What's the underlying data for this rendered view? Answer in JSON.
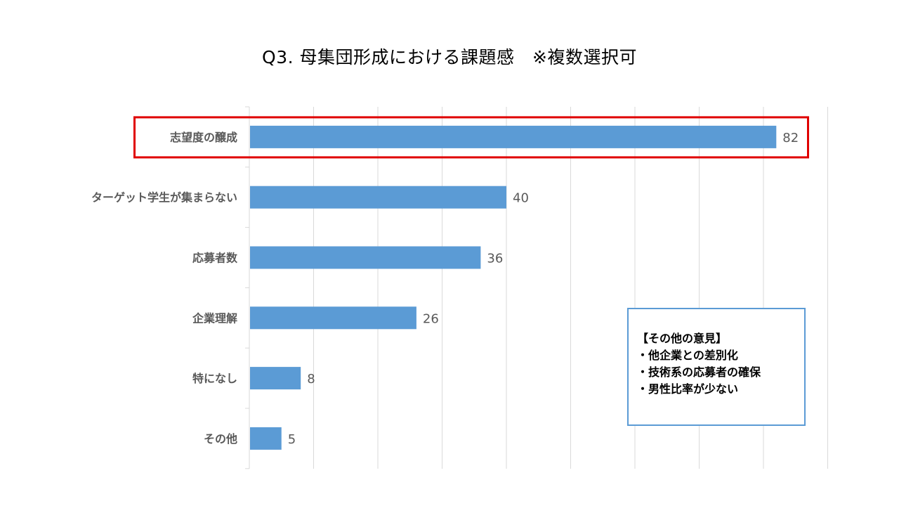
{
  "chart_data": {
    "type": "bar",
    "orientation": "horizontal",
    "title": "Q3. 母集団形成における課題感　※複数選択可",
    "categories": [
      "志望度の醸成",
      "ターゲット学生が集まらない",
      "応募者数",
      "企業理解",
      "特になし",
      "その他"
    ],
    "values": [
      82,
      40,
      36,
      26,
      8,
      5
    ],
    "xlim": [
      0,
      90
    ],
    "grid": "vertical",
    "bar_color": "#5b9bd5",
    "highlighted_category": "志望度の醸成",
    "highlight_color": "#e00000",
    "xlabel": "",
    "ylabel": ""
  },
  "note": {
    "heading": "【その他の意見】",
    "items": [
      "・他企業との差別化",
      "・技術系の応募者の確保",
      "・男性比率が少ない"
    ],
    "border_color": "#5b9bd5"
  }
}
